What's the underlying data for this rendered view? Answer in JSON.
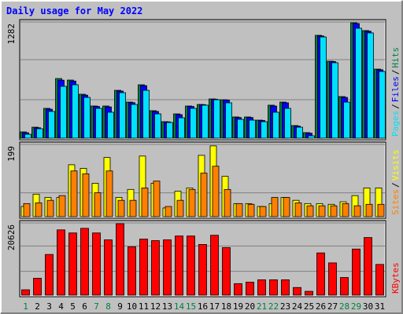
{
  "chart_data": [
    {
      "type": "bar",
      "title": "Daily usage for May 2022",
      "ylim": [
        0,
        1282
      ],
      "yticks": [
        1282
      ],
      "legend_separator": "/",
      "series": [
        {
          "name": "Pages",
          "color": "#00e0ff",
          "values": [
            43,
            104,
            295,
            572,
            589,
            450,
            329,
            286,
            502,
            372,
            528,
            268,
            173,
            225,
            329,
            364,
            424,
            390,
            208,
            199,
            182,
            286,
            329,
            121,
            26,
            1117,
            832,
            398,
            1213,
            1161,
            736
          ]
        },
        {
          "name": "Files",
          "color": "#0000ff",
          "values": [
            60,
            115,
            320,
            640,
            630,
            475,
            350,
            345,
            520,
            392,
            580,
            295,
            180,
            260,
            350,
            370,
            430,
            420,
            228,
            228,
            195,
            355,
            390,
            133,
            55,
            1128,
            845,
            450,
            1265,
            1180,
            755
          ]
        },
        {
          "name": "Hits",
          "color": "#008040",
          "values": [
            69,
            121,
            329,
            658,
            641,
            485,
            355,
            355,
            528,
            398,
            589,
            303,
            182,
            268,
            355,
            372,
            433,
            424,
            234,
            234,
            199,
            364,
            398,
            139,
            61,
            1135,
            849,
            459,
            1273,
            1187,
            762
          ]
        }
      ]
    },
    {
      "type": "bar",
      "ylim": [
        0,
        199
      ],
      "yticks": [
        199
      ],
      "legend_separator": "/",
      "series": [
        {
          "name": "Sites",
          "color": "#ff8000",
          "values": [
            36,
            38,
            45,
            58,
            126,
            118,
            66,
            126,
            45,
            45,
            79,
            98,
            28,
            45,
            75,
            120,
            139,
            75,
            36,
            34,
            28,
            53,
            53,
            38,
            30,
            30,
            30,
            36,
            30,
            34,
            34
          ]
        },
        {
          "name": "Visits",
          "color": "#ffff00",
          "values": [
            28,
            62,
            53,
            53,
            143,
            133,
            92,
            163,
            53,
            75,
            167,
            92,
            24,
            70,
            79,
            169,
            195,
            111,
            36,
            36,
            28,
            36,
            53,
            45,
            36,
            36,
            34,
            41,
            58,
            79,
            79
          ]
        }
      ]
    },
    {
      "type": "bar",
      "ylim": [
        0,
        20626
      ],
      "yticks": [
        20626
      ],
      "series": [
        {
          "name": "KBytes",
          "color": "#ff0000",
          "values": [
            1540,
            4830,
            11630,
            18650,
            17770,
            19090,
            17770,
            15800,
            20400,
            13820,
            16020,
            15580,
            15800,
            16900,
            16900,
            14480,
            17110,
            13600,
            3290,
            3730,
            4390,
            4390,
            4390,
            2190,
            1100,
            12070,
            9220,
            5050,
            13170,
            16460,
            8780
          ]
        }
      ],
      "categories": [
        "1",
        "2",
        "3",
        "4",
        "5",
        "6",
        "7",
        "8",
        "9",
        "10",
        "11",
        "12",
        "13",
        "14",
        "15",
        "16",
        "17",
        "18",
        "19",
        "20",
        "21",
        "22",
        "23",
        "24",
        "25",
        "26",
        "27",
        "28",
        "29",
        "30",
        "31"
      ],
      "category_colors": [
        "#008040",
        "#000000",
        "#000000",
        "#000000",
        "#000000",
        "#000000",
        "#008040",
        "#008040",
        "#000000",
        "#000000",
        "#000000",
        "#000000",
        "#000000",
        "#008040",
        "#008040",
        "#000000",
        "#000000",
        "#000000",
        "#000000",
        "#000000",
        "#008040",
        "#008040",
        "#000000",
        "#000000",
        "#000000",
        "#000000",
        "#000000",
        "#008040",
        "#008040",
        "#000000",
        "#000000"
      ]
    }
  ]
}
